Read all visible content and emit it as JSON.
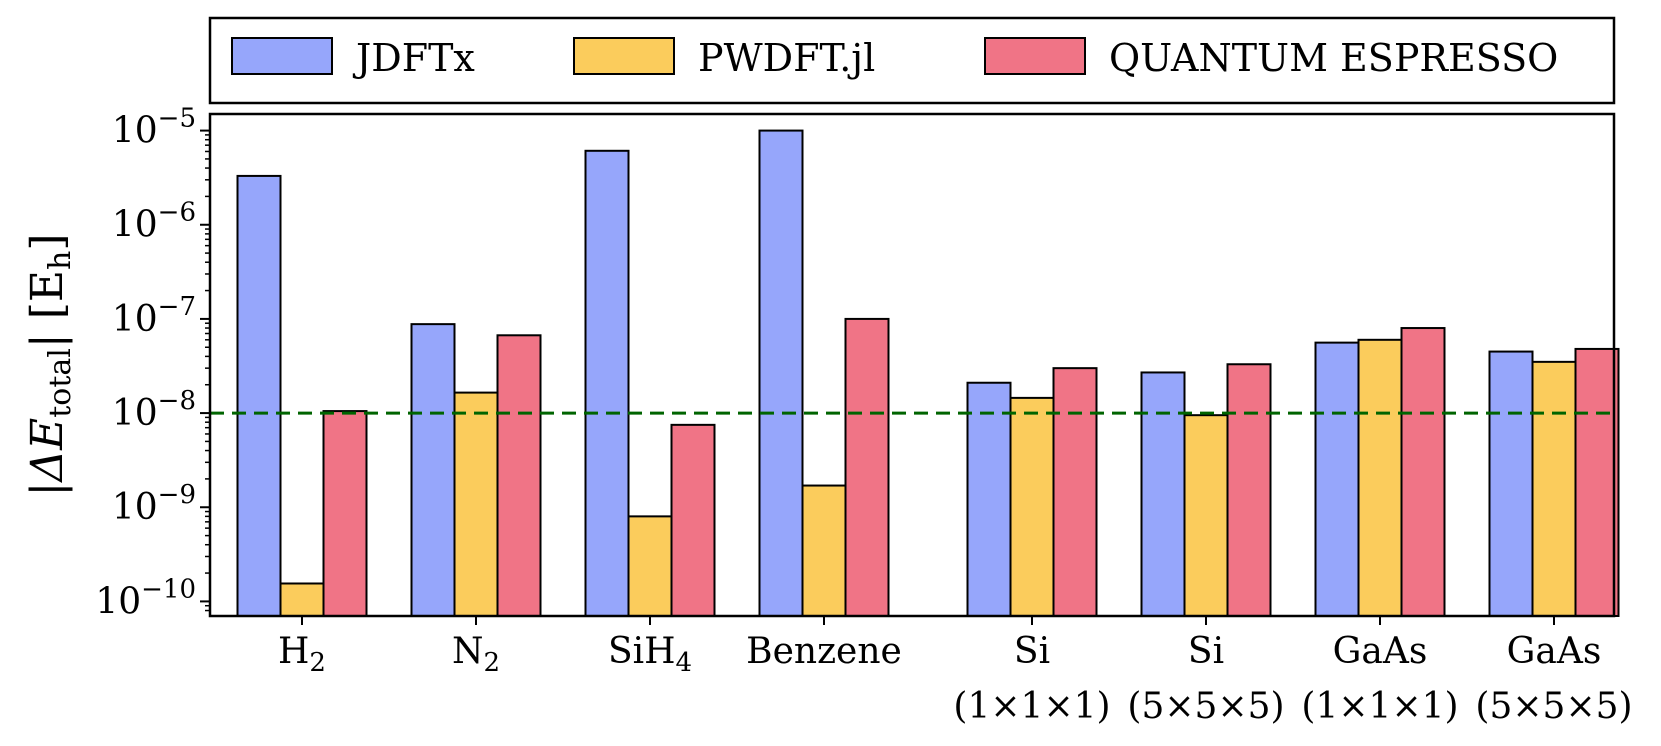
{
  "chart_data": {
    "type": "bar",
    "title": "",
    "xlabel": "",
    "ylabel": "|ΔE_total| [E_h]",
    "ylabel_parts": {
      "bar": "|",
      "delta_e": "ΔE",
      "sub": "total",
      "close": "| [E",
      "unit_sub": "h",
      "end": "]"
    },
    "yscale": "log",
    "ylim": [
      7e-11,
      1.5e-05
    ],
    "yticks": [
      {
        "value": 1e-10,
        "base": "10",
        "exp": "−10"
      },
      {
        "value": 1e-09,
        "base": "10",
        "exp": "−9"
      },
      {
        "value": 1e-08,
        "base": "10",
        "exp": "−8"
      },
      {
        "value": 1e-07,
        "base": "10",
        "exp": "−7"
      },
      {
        "value": 1e-06,
        "base": "10",
        "exp": "−6"
      },
      {
        "value": 1e-05,
        "base": "10",
        "exp": "−5"
      }
    ],
    "categories": [
      {
        "main": "H",
        "sub": "2",
        "line2": ""
      },
      {
        "main": "N",
        "sub": "2",
        "line2": ""
      },
      {
        "main": "SiH",
        "sub": "4",
        "line2": ""
      },
      {
        "main": "Benzene",
        "sub": "",
        "line2": ""
      },
      {
        "main": "Si",
        "sub": "",
        "line2": "(1×1×1)"
      },
      {
        "main": "Si",
        "sub": "",
        "line2": "(5×5×5)"
      },
      {
        "main": "GaAs",
        "sub": "",
        "line2": "(1×1×1)"
      },
      {
        "main": "GaAs",
        "sub": "",
        "line2": "(5×5×5)"
      }
    ],
    "series": [
      {
        "name": "JDFTx",
        "color": "#96a6fb",
        "values": [
          3.3e-06,
          8.8e-08,
          6.1e-06,
          1e-05,
          2.1e-08,
          2.7e-08,
          5.6e-08,
          4.5e-08
        ]
      },
      {
        "name": "PWDFT.jl",
        "color": "#fbcc5c",
        "values": [
          1.55e-10,
          1.65e-08,
          8e-10,
          1.7e-09,
          1.45e-08,
          9.5e-09,
          6e-08,
          3.5e-08
        ]
      },
      {
        "name": "QUANTUM ESPRESSO",
        "color": "#f07486",
        "values": [
          1.05e-08,
          6.7e-08,
          7.5e-09,
          1e-07,
          3e-08,
          3.3e-08,
          8e-08,
          4.8e-08
        ]
      }
    ],
    "reference_line": {
      "value": 1e-08,
      "color": "#006400",
      "style": "dashed"
    },
    "legend": {
      "placement": "top",
      "columns": 3
    },
    "grid": false
  }
}
